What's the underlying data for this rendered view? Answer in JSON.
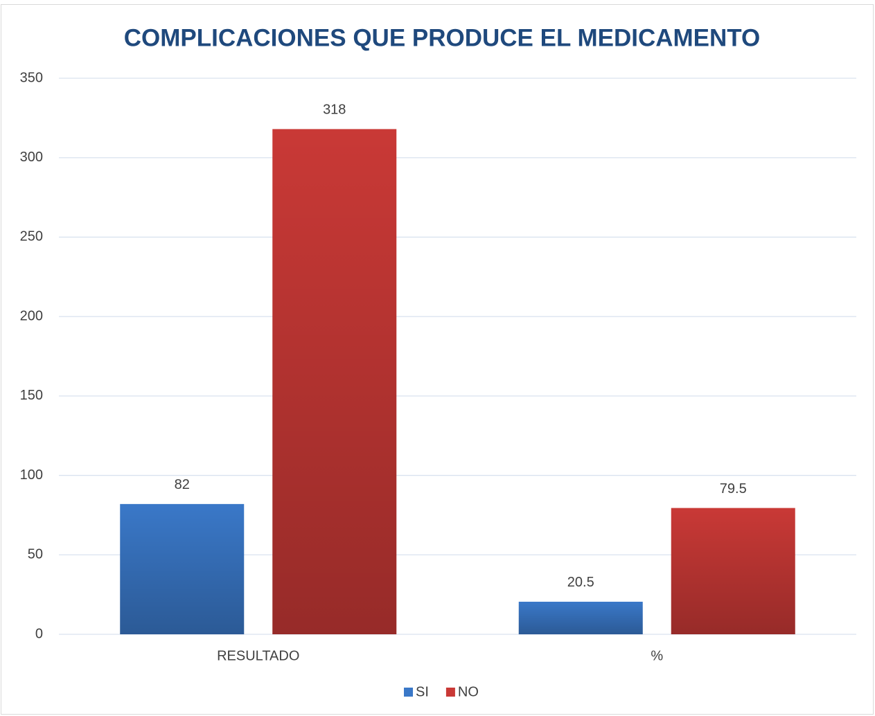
{
  "chart_data": {
    "type": "bar",
    "title": "COMPLICACIONES QUE PRODUCE EL MEDICAMENTO",
    "categories": [
      "RESULTADO",
      "%"
    ],
    "series": [
      {
        "name": "SI",
        "color": "#3a78c8",
        "values": [
          82,
          20.5
        ]
      },
      {
        "name": "NO",
        "color": "#c93936",
        "values": [
          318,
          79.5
        ]
      }
    ],
    "ylim": [
      0,
      350
    ],
    "yticks": [
      0,
      50,
      100,
      150,
      200,
      250,
      300,
      350
    ],
    "grid": true,
    "legend": "bottom"
  }
}
